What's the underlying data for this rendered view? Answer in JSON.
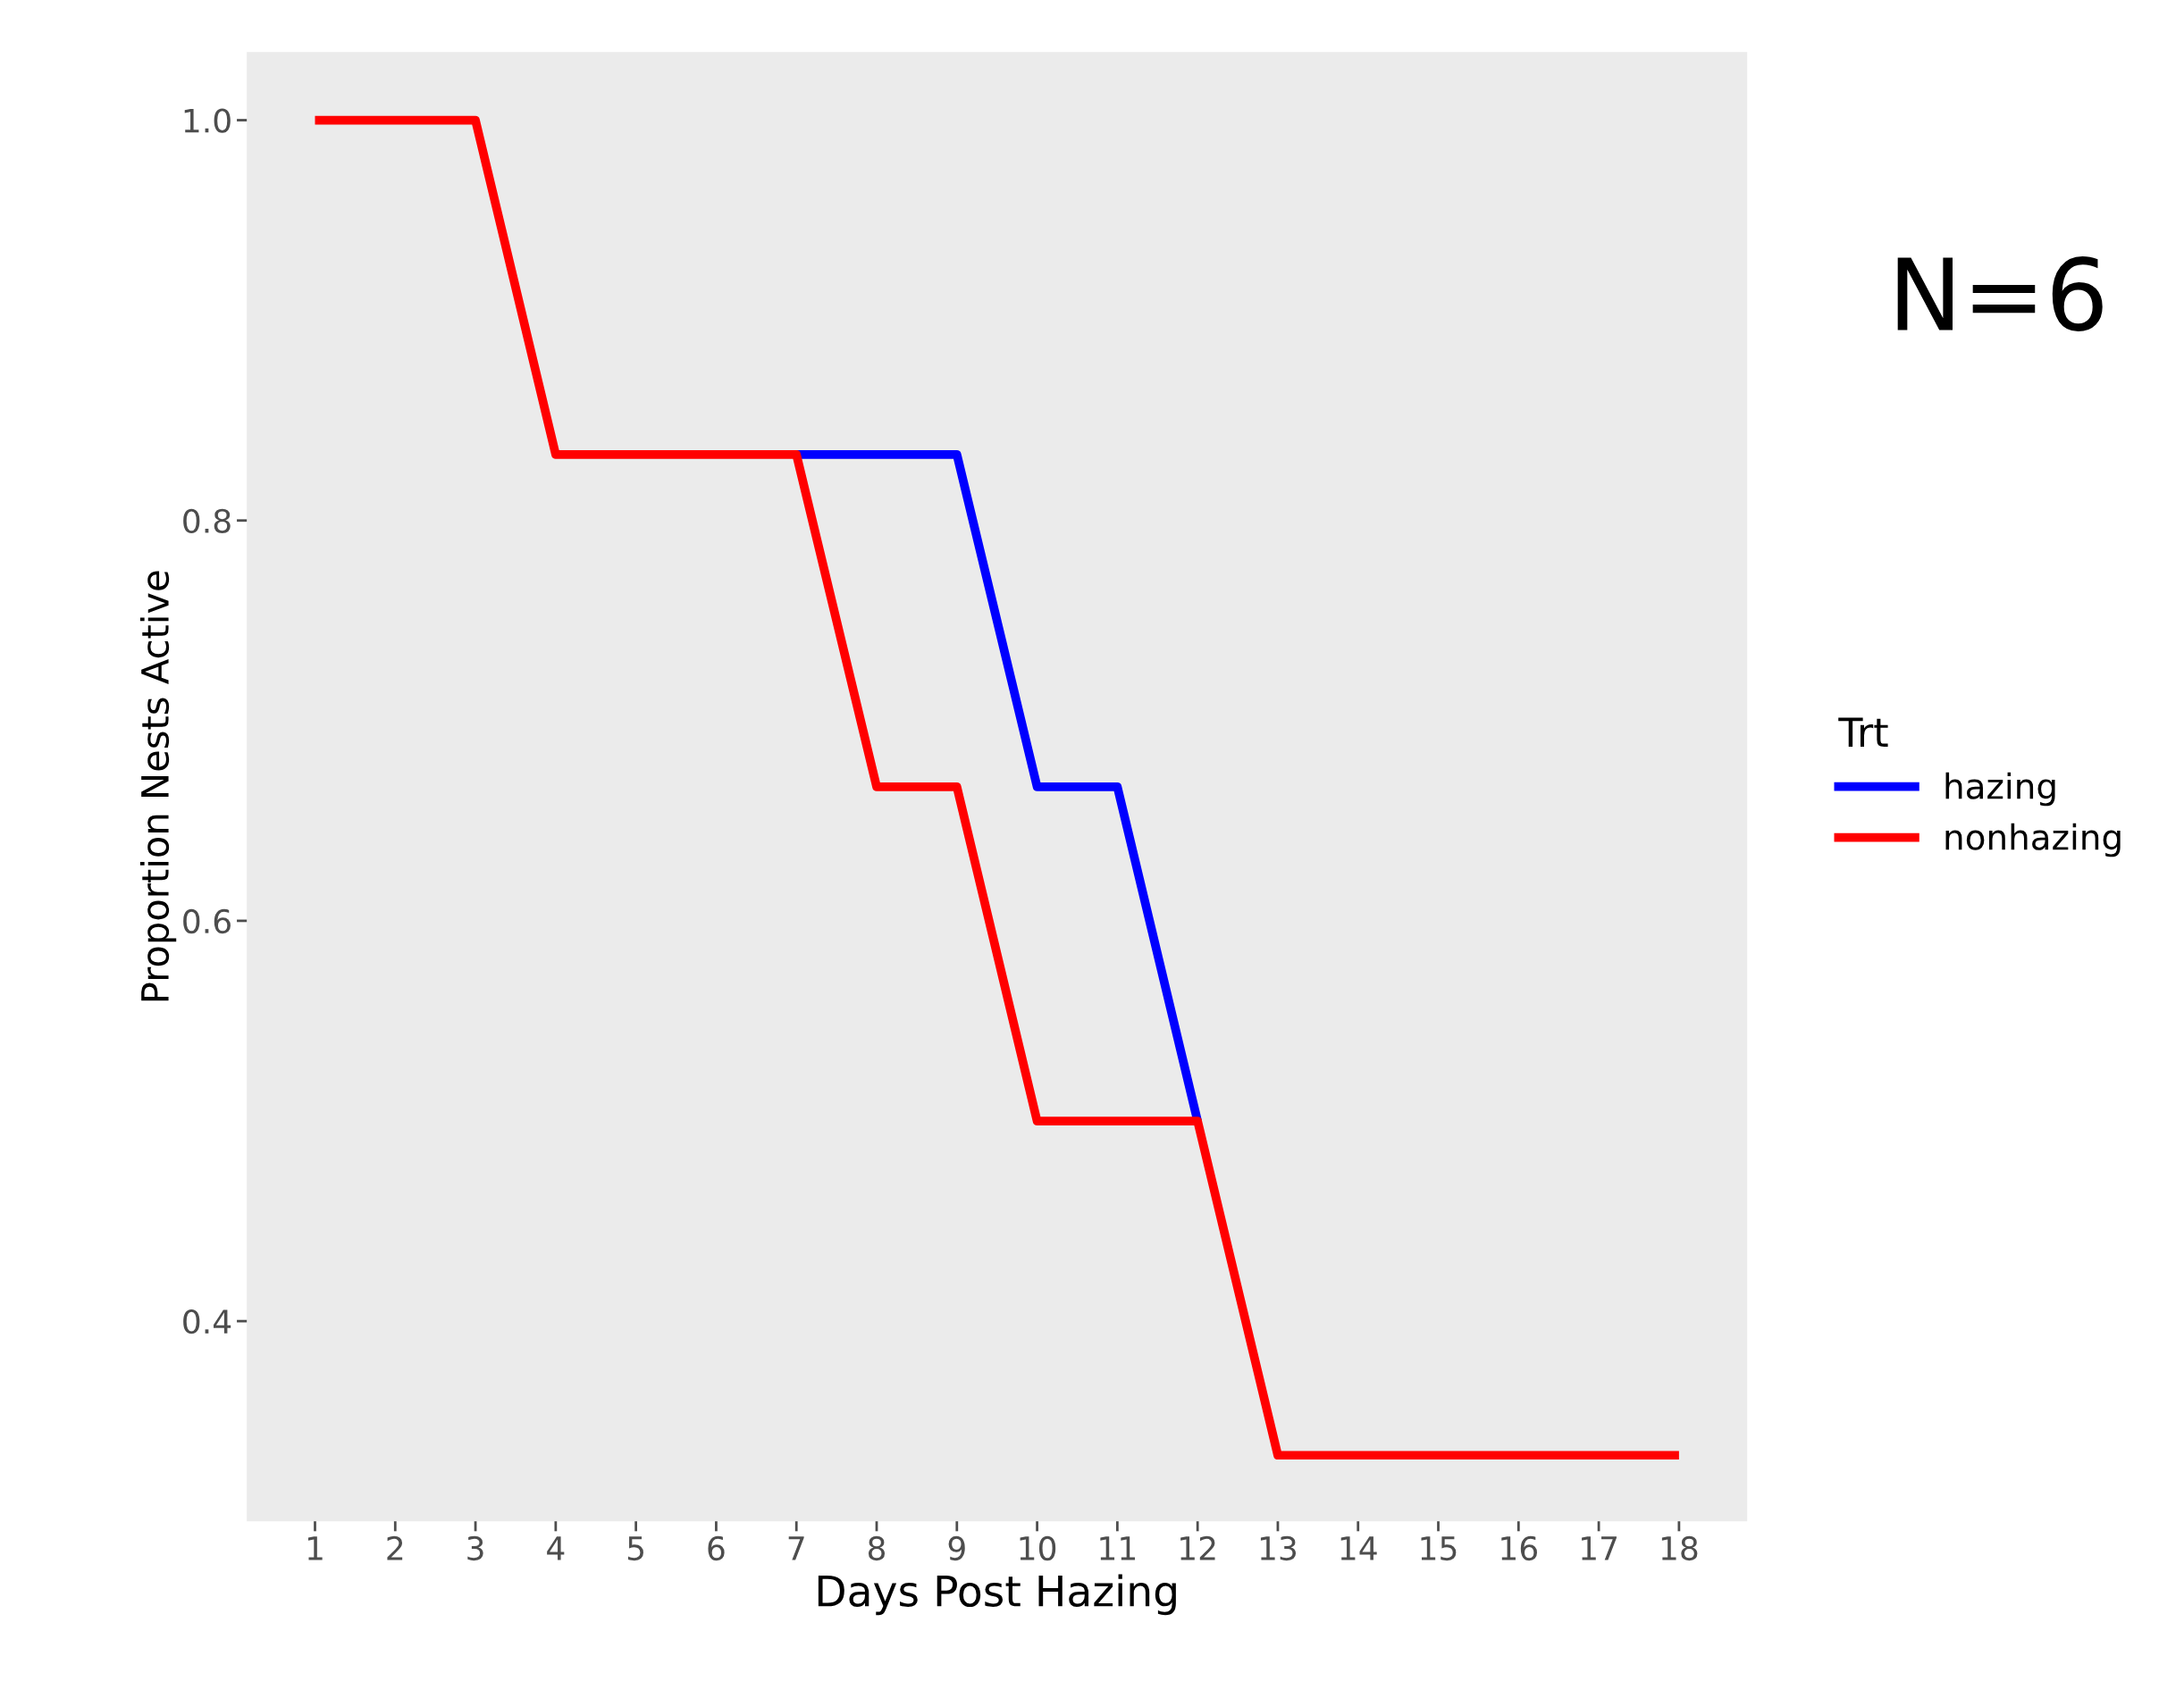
{
  "chart_data": {
    "type": "line",
    "xlabel": "Days Post Hazing",
    "ylabel": "Proportion Nests Active",
    "legend_title": "Trt",
    "x": [
      1,
      2,
      3,
      4,
      5,
      6,
      7,
      8,
      9,
      10,
      11,
      12,
      13,
      14,
      15,
      16,
      17,
      18
    ],
    "series": [
      {
        "name": "hazing",
        "color": "#0000ff",
        "values": [
          null,
          null,
          null,
          null,
          null,
          null,
          0.833,
          0.833,
          0.833,
          0.667,
          0.667,
          0.5,
          null,
          null,
          null,
          null,
          null,
          null
        ]
      },
      {
        "name": "nonhazing",
        "color": "#ff0000",
        "values": [
          1,
          1,
          1,
          0.833,
          0.833,
          0.833,
          0.833,
          0.667,
          0.667,
          0.5,
          0.5,
          0.5,
          0.333,
          0.333,
          0.333,
          0.333,
          0.333,
          0.333
        ]
      }
    ],
    "xlim": [
      0.15,
      18.85
    ],
    "xticks": [
      1,
      2,
      3,
      4,
      5,
      6,
      7,
      8,
      9,
      10,
      11,
      12,
      13,
      14,
      15,
      16,
      17,
      18
    ],
    "ylim": [
      0.3,
      1.034
    ],
    "yticks": [
      {
        "value": 0.4,
        "label": "0.4"
      },
      {
        "value": 0.6,
        "label": "0.6"
      },
      {
        "value": 0.8,
        "label": "0.8"
      },
      {
        "value": 1.0,
        "label": "1.0"
      }
    ],
    "grid": false,
    "legend": "right",
    "line_style": "solid",
    "marker": "none",
    "annotations": [
      "N=6"
    ]
  }
}
